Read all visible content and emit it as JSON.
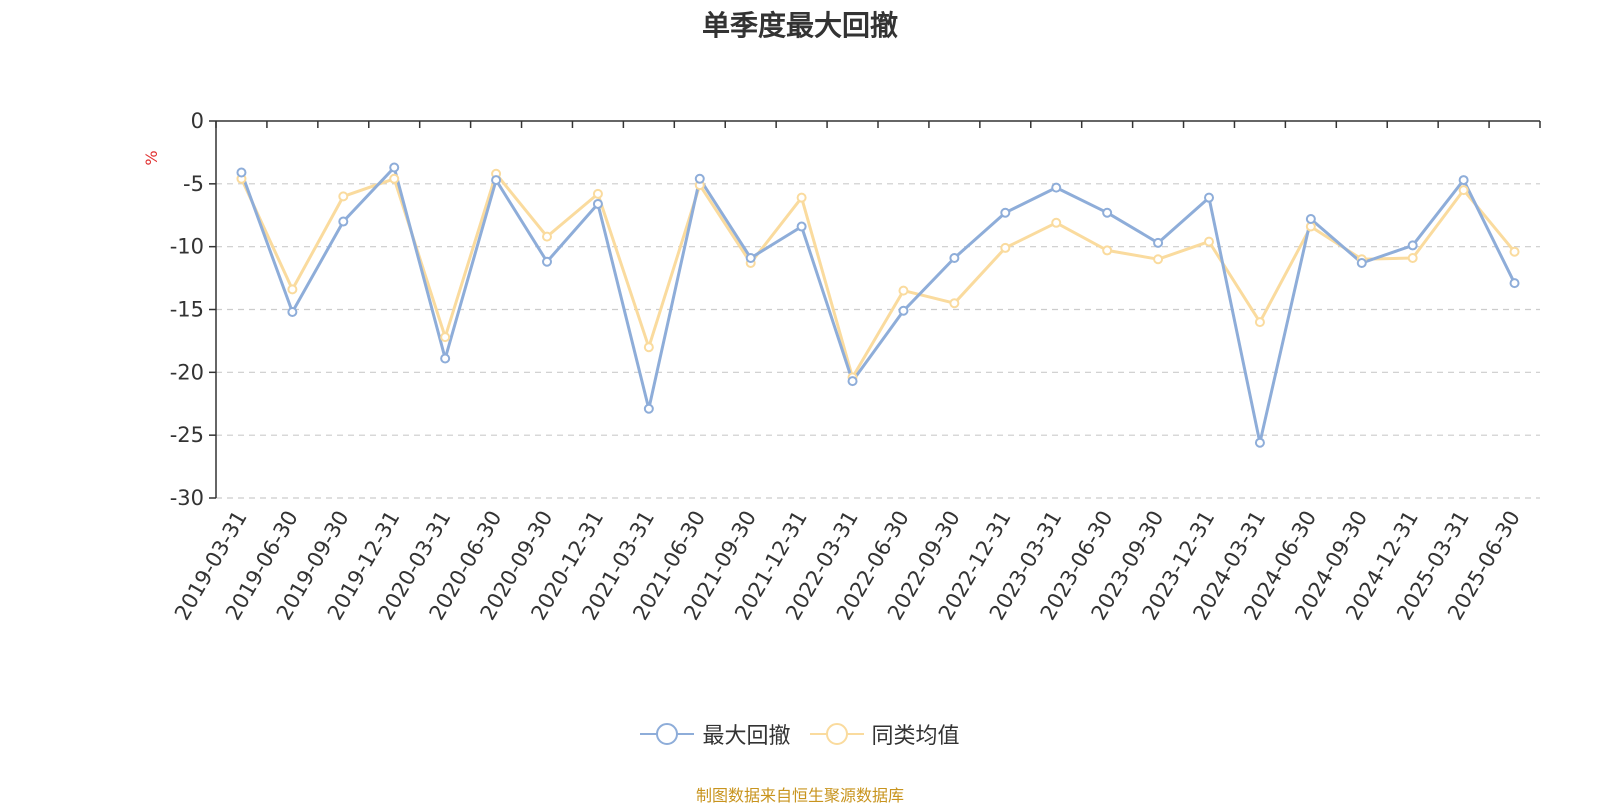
{
  "source_note": "制图数据来自恒生聚源数据库",
  "colors": {
    "series1": "#8eadd9",
    "series2": "#fadb9e",
    "axis": "#333333",
    "grid": "#cccccc",
    "unit": "#e03030"
  },
  "chart_data": {
    "type": "line",
    "title": "单季度最大回撤",
    "ylabel": "%",
    "xlabel": "",
    "ylim": [
      -30,
      0
    ],
    "yticks": [
      0,
      -5,
      -10,
      -15,
      -20,
      -25,
      -30
    ],
    "grid": true,
    "legend_position": "bottom-center",
    "categories": [
      "2019-03-31",
      "2019-06-30",
      "2019-09-30",
      "2019-12-31",
      "2020-03-31",
      "2020-06-30",
      "2020-09-30",
      "2020-12-31",
      "2021-03-31",
      "2021-06-30",
      "2021-09-30",
      "2021-12-31",
      "2022-03-31",
      "2022-06-30",
      "2022-09-30",
      "2022-12-31",
      "2023-03-31",
      "2023-06-30",
      "2023-09-30",
      "2023-12-31",
      "2024-03-31",
      "2024-06-30",
      "2024-09-30",
      "2024-12-31",
      "2025-03-31",
      "2025-06-30"
    ],
    "series": [
      {
        "name": "最大回撤",
        "values": [
          -4.1,
          -15.2,
          -8.0,
          -3.7,
          -18.9,
          -4.7,
          -11.2,
          -6.6,
          -22.9,
          -4.6,
          -10.9,
          -8.4,
          -20.7,
          -15.1,
          -10.9,
          -7.3,
          -5.3,
          -7.3,
          -9.7,
          -6.1,
          -25.6,
          -7.8,
          -11.3,
          -9.9,
          -4.7,
          -12.9
        ]
      },
      {
        "name": "同类均值",
        "values": [
          -4.6,
          -13.4,
          -6.0,
          -4.6,
          -17.2,
          -4.2,
          -9.2,
          -5.8,
          -18.0,
          -5.1,
          -11.3,
          -6.1,
          -20.4,
          -13.5,
          -14.5,
          -10.1,
          -8.1,
          -10.3,
          -11.0,
          -9.6,
          -16.0,
          -8.4,
          -11.0,
          -10.9,
          -5.5,
          -10.4
        ]
      }
    ]
  }
}
